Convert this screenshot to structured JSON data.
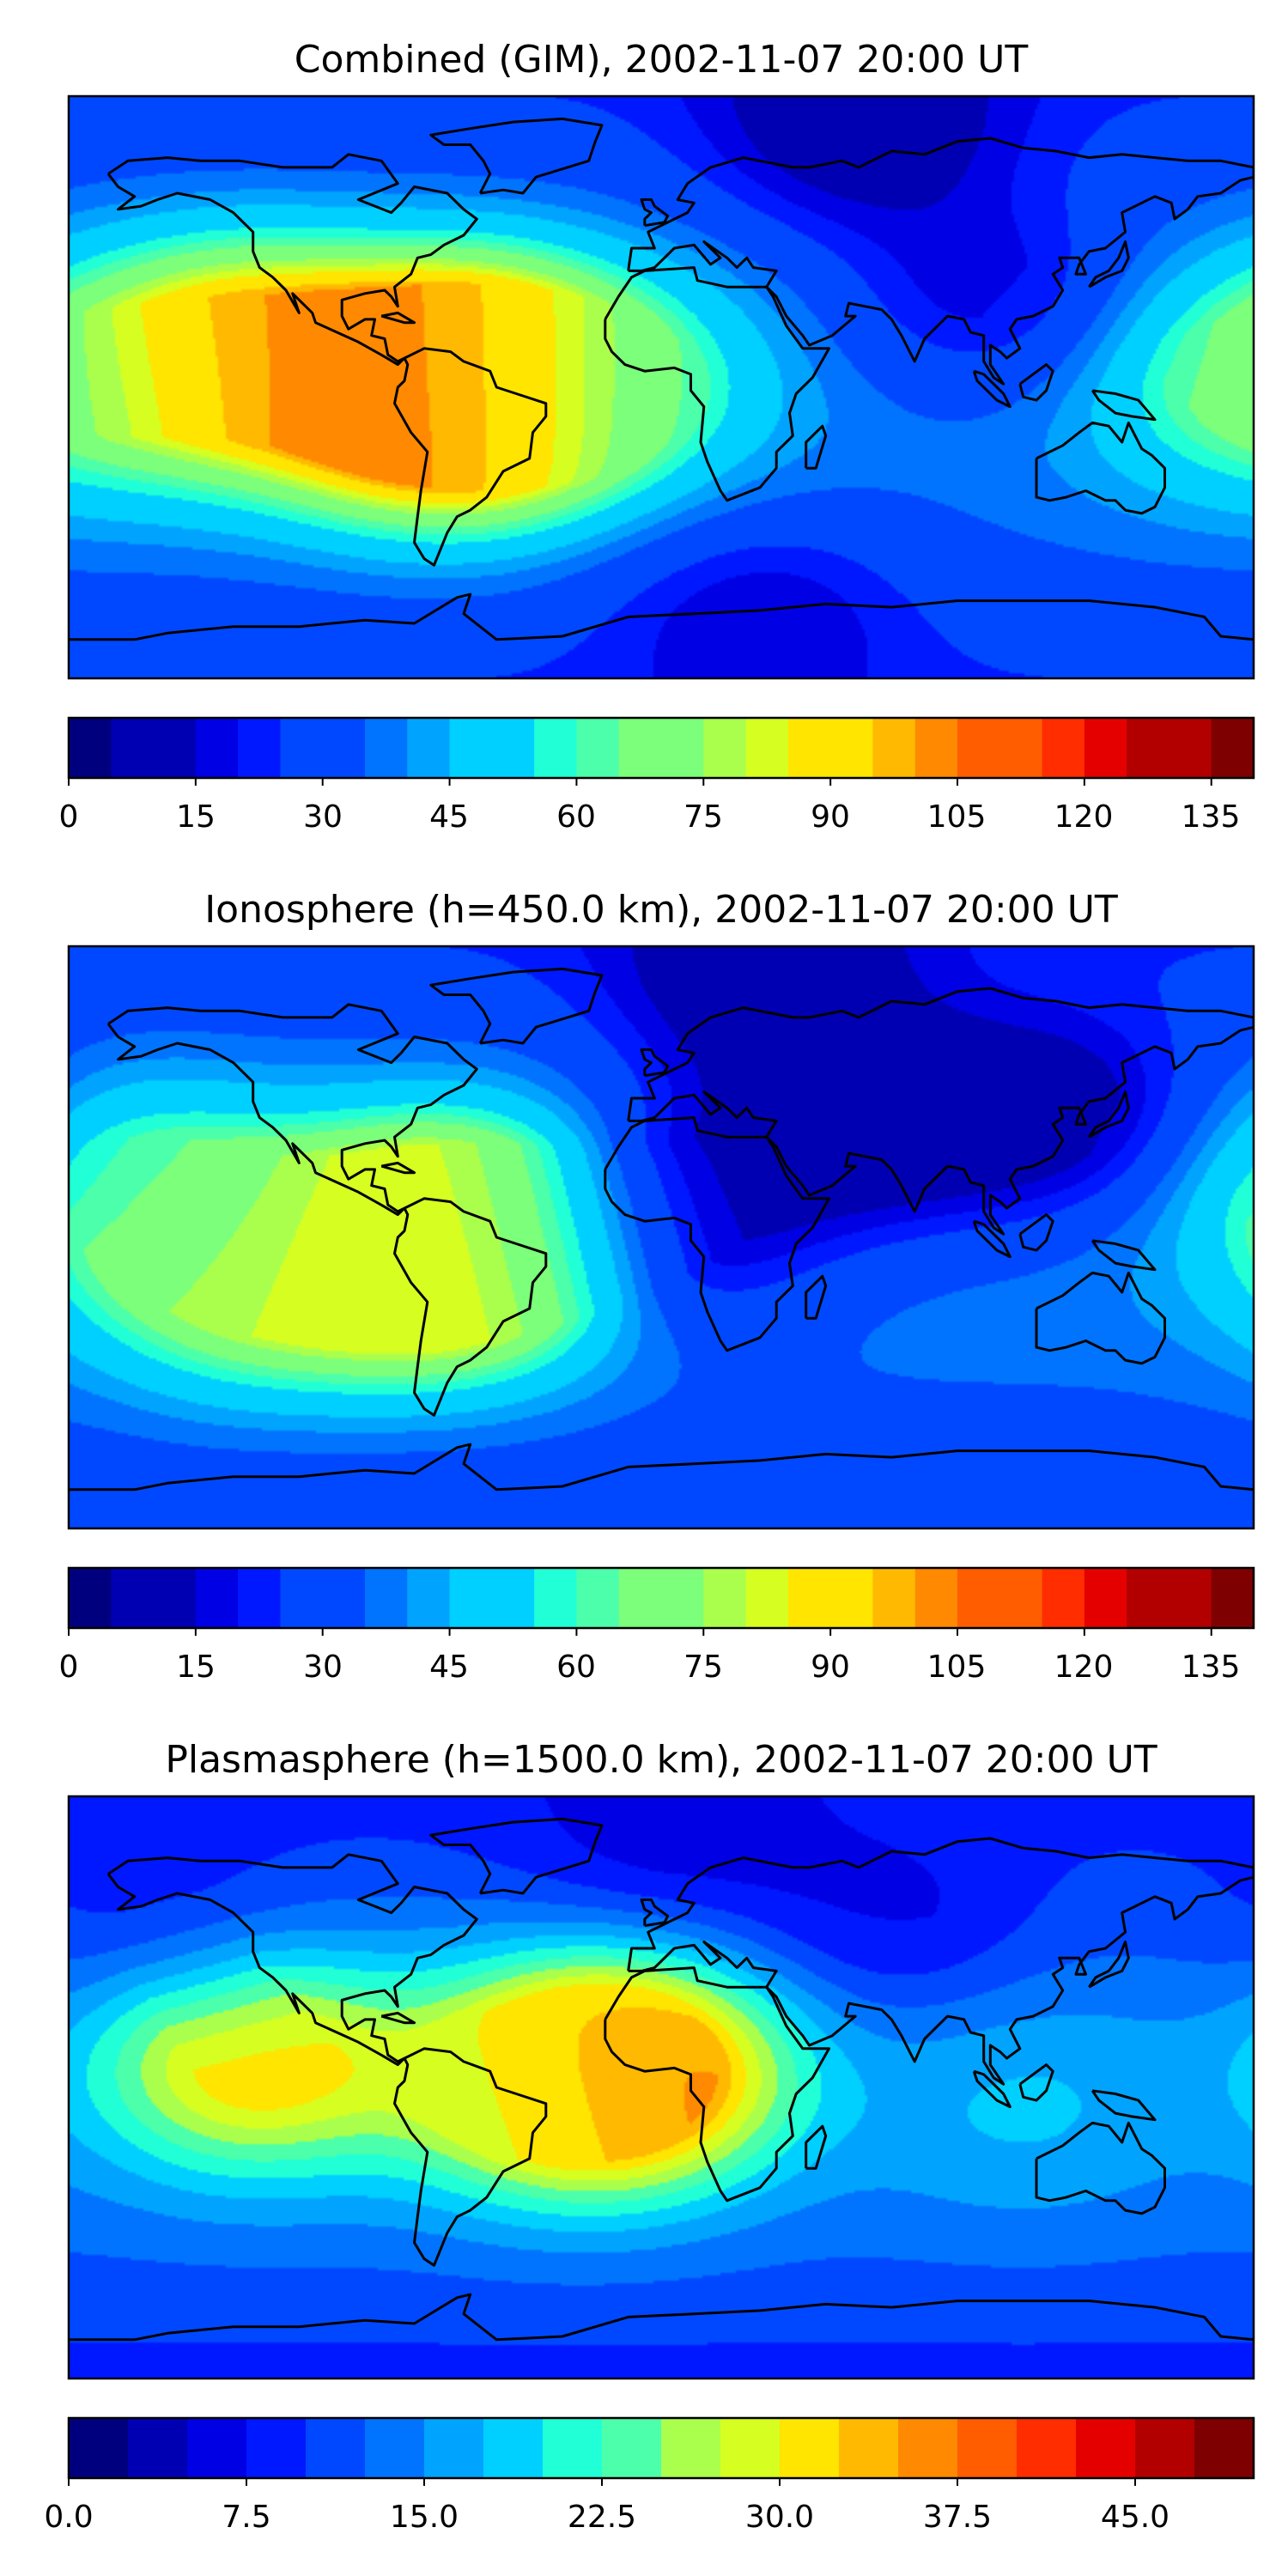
{
  "palette": [
    "#00007f",
    "#0000b2",
    "#0000e5",
    "#0018ff",
    "#0048ff",
    "#0074ff",
    "#00a4ff",
    "#00d0ff",
    "#21ffd6",
    "#4cffaa",
    "#7cff7a",
    "#aaff4c",
    "#d6ff21",
    "#ffe500",
    "#ffb900",
    "#ff8900",
    "#ff5d00",
    "#ff2d00",
    "#e50000",
    "#b20000",
    "#7f0000"
  ],
  "chart_data": [
    {
      "type": "heatmap",
      "title": "Combined (GIM), 2002-11-07 20:00 UT",
      "colorbar": {
        "min": 0,
        "max": 140,
        "step": 5,
        "ticks": [
          "0",
          "15",
          "30",
          "45",
          "60",
          "75",
          "90",
          "105",
          "120",
          "135"
        ],
        "tick_values": [
          0,
          15,
          30,
          45,
          60,
          75,
          90,
          105,
          120,
          135
        ]
      },
      "extrema": {
        "maxima": [
          {
            "lon": -70,
            "lat": -3,
            "value": 108
          },
          {
            "lon": -128,
            "lat": 9,
            "value": 103
          },
          {
            "lon": -55,
            "lat": 2,
            "value": 100
          },
          {
            "lon": 176,
            "lat": 2,
            "value": 65
          },
          {
            "lon": -10,
            "lat": 0,
            "value": 55
          }
        ],
        "minima": [
          {
            "lon": 60,
            "lat": 85,
            "value": 5
          },
          {
            "lon": 100,
            "lat": 30,
            "value": 18
          },
          {
            "lon": 30,
            "lat": -75,
            "value": 15
          }
        ]
      }
    },
    {
      "type": "heatmap",
      "title": "Ionosphere  (h=450.0 km), 2002-11-07 20:00 UT",
      "colorbar": {
        "min": 0,
        "max": 140,
        "step": 5,
        "ticks": [
          "0",
          "15",
          "30",
          "45",
          "60",
          "75",
          "90",
          "105",
          "120",
          "135"
        ],
        "tick_values": [
          0,
          15,
          30,
          45,
          60,
          75,
          90,
          105,
          120,
          135
        ]
      },
      "extrema": {
        "maxima": [
          {
            "lon": -72,
            "lat": -5,
            "value": 90
          },
          {
            "lon": -55,
            "lat": 0,
            "value": 85
          },
          {
            "lon": -125,
            "lat": -10,
            "value": 80
          },
          {
            "lon": -160,
            "lat": 15,
            "value": 60
          }
        ],
        "minima": [
          {
            "lon": 0,
            "lat": 5,
            "value": 10
          },
          {
            "lon": 60,
            "lat": 35,
            "value": 8
          },
          {
            "lon": 120,
            "lat": 40,
            "value": 10
          },
          {
            "lon": 30,
            "lat": 85,
            "value": 5
          }
        ]
      }
    },
    {
      "type": "heatmap",
      "title": "Plasmasphere (h=1500.0 km), 2002-11-07 20:00 UT",
      "colorbar": {
        "min": 0,
        "max": 50,
        "step": 2.5,
        "ticks": [
          "0.0",
          "7.5",
          "15.0",
          "22.5",
          "30.0",
          "37.5",
          "45.0"
        ],
        "tick_values": [
          0,
          7.5,
          15,
          22.5,
          30,
          37.5,
          45
        ]
      },
      "extrema": {
        "maxima": [
          {
            "lon": -10,
            "lat": 5,
            "value": 40
          },
          {
            "lon": -125,
            "lat": 8,
            "value": 33
          },
          {
            "lon": -40,
            "lat": 0,
            "value": 25
          },
          {
            "lon": 110,
            "lat": -5,
            "value": 18
          }
        ],
        "minima": [
          {
            "lon": 70,
            "lat": 55,
            "value": 7
          },
          {
            "lon": -150,
            "lat": 55,
            "value": 8
          },
          {
            "lon": 0,
            "lat": 80,
            "value": 6
          }
        ]
      }
    }
  ]
}
